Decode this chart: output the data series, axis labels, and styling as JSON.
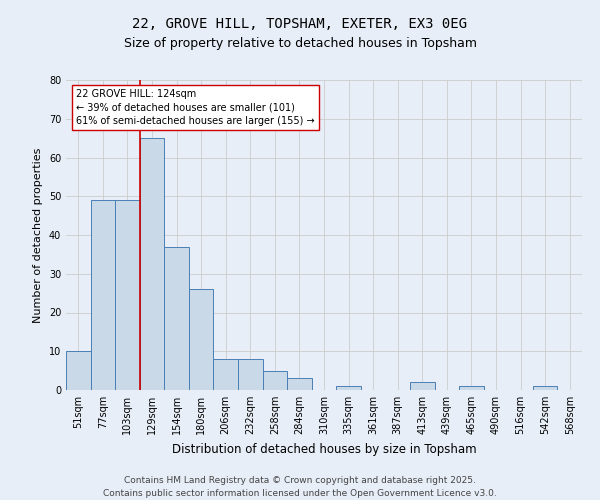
{
  "title": "22, GROVE HILL, TOPSHAM, EXETER, EX3 0EG",
  "subtitle": "Size of property relative to detached houses in Topsham",
  "xlabel": "Distribution of detached houses by size in Topsham",
  "ylabel": "Number of detached properties",
  "categories": [
    "51sqm",
    "77sqm",
    "103sqm",
    "129sqm",
    "154sqm",
    "180sqm",
    "206sqm",
    "232sqm",
    "258sqm",
    "284sqm",
    "310sqm",
    "335sqm",
    "361sqm",
    "387sqm",
    "413sqm",
    "439sqm",
    "465sqm",
    "490sqm",
    "516sqm",
    "542sqm",
    "568sqm"
  ],
  "values": [
    10,
    49,
    49,
    65,
    37,
    26,
    8,
    8,
    5,
    3,
    0,
    1,
    0,
    0,
    2,
    0,
    1,
    0,
    0,
    1,
    0
  ],
  "bar_color": "#c9d9e8",
  "bar_edge_color": "#4a7fb5",
  "grid_color": "#cccccc",
  "background_color": "#e8eef7",
  "vline_color": "#cc0000",
  "vline_x_index": 3,
  "annotation_text": "22 GROVE HILL: 124sqm\n← 39% of detached houses are smaller (101)\n61% of semi-detached houses are larger (155) →",
  "annotation_box_color": "#ffffff",
  "annotation_box_edge": "#cc0000",
  "ylim": [
    0,
    80
  ],
  "yticks": [
    0,
    10,
    20,
    30,
    40,
    50,
    60,
    70,
    80
  ],
  "footer": "Contains HM Land Registry data © Crown copyright and database right 2025.\nContains public sector information licensed under the Open Government Licence v3.0.",
  "title_fontsize": 10,
  "subtitle_fontsize": 9,
  "ylabel_fontsize": 8,
  "xlabel_fontsize": 8.5,
  "tick_fontsize": 7,
  "annotation_fontsize": 7,
  "footer_fontsize": 6.5
}
